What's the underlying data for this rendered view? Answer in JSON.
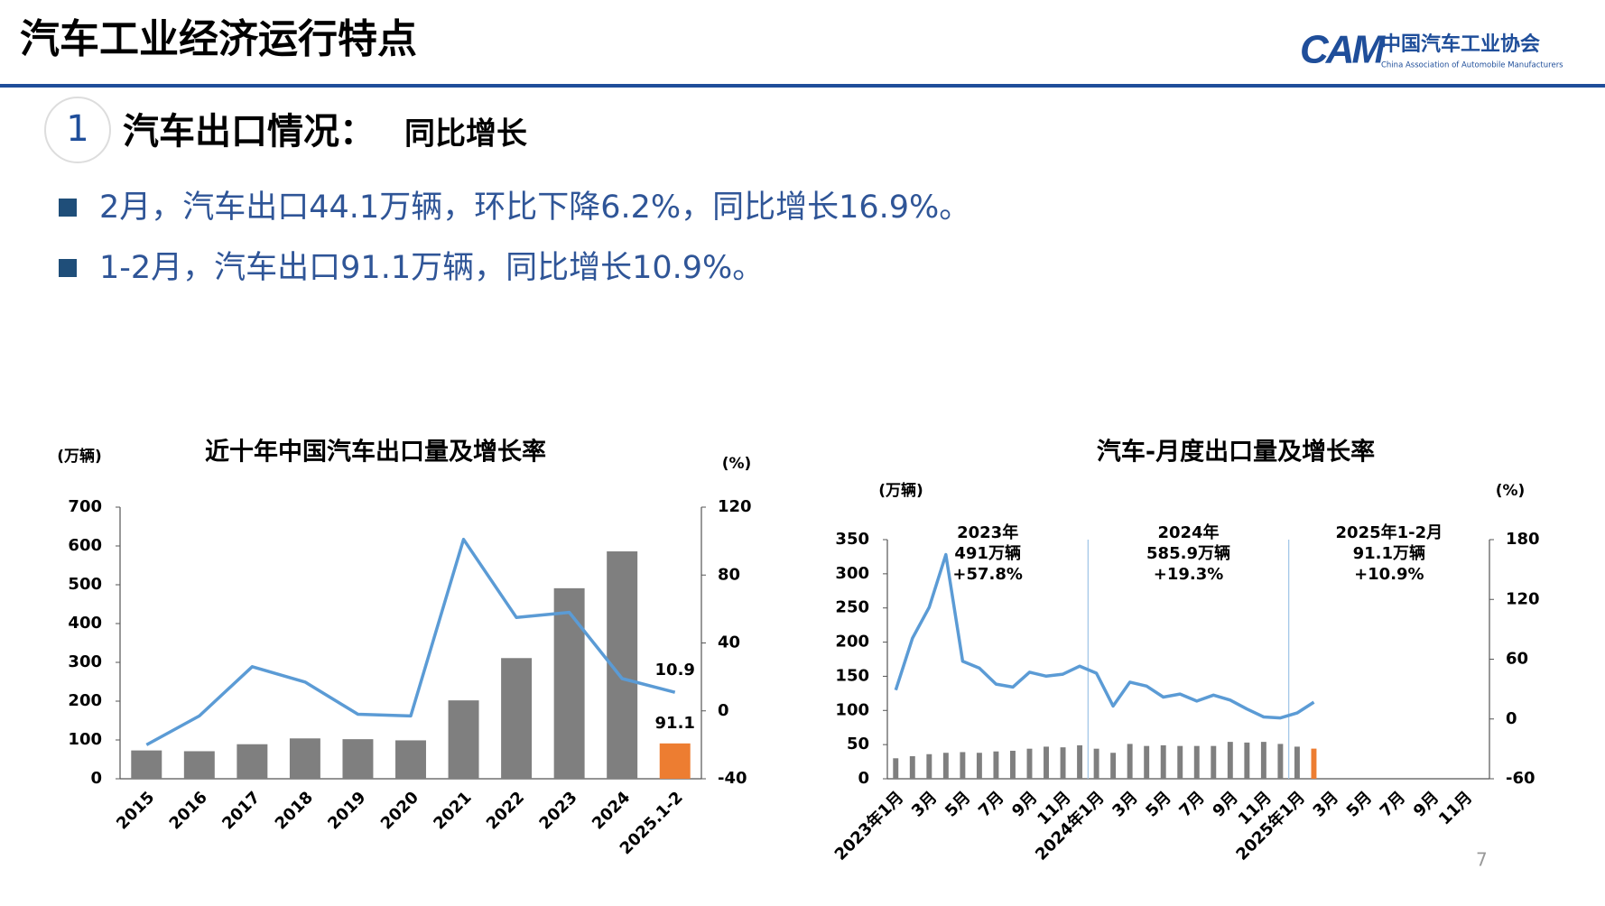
{
  "header": {
    "title": "汽车工业经济运行特点",
    "org_name": "中国汽车工业协会",
    "org_name_en": "China Association of Automobile Manufacturers",
    "logo_text": "CAM"
  },
  "section": {
    "number": "1",
    "heading": "汽车出口情况：",
    "subheading": "同比增长",
    "bullets": [
      "2月，汽车出口44.1万辆，环比下降6.2%，同比增长16.9%。",
      "1-2月，汽车出口91.1万辆，同比增长10.9%。"
    ]
  },
  "page_number": "7",
  "chart_data": [
    {
      "type": "combo",
      "title": "近十年中国汽车出口量及增长率",
      "y_label": "(万辆)",
      "y2_label": "(%)",
      "categories": [
        "2015",
        "2016",
        "2017",
        "2018",
        "2019",
        "2020",
        "2021",
        "2022",
        "2023",
        "2024",
        "2025.1-2"
      ],
      "series": [
        {
          "type": "bar",
          "axis": "y",
          "color": "#7f7f7f",
          "last_color": "#ed7d31",
          "values": [
            73,
            71,
            89,
            104,
            102,
            99,
            202,
            311,
            491,
            586,
            91.1
          ]
        },
        {
          "type": "line",
          "axis": "y2",
          "color": "#5b9bd5",
          "values": [
            -20,
            -3,
            26,
            17,
            -2,
            -3,
            101,
            55,
            58,
            19,
            10.9
          ]
        }
      ],
      "label_last": true,
      "ylim": [
        0,
        700
      ],
      "yticks": [
        0,
        100,
        200,
        300,
        400,
        500,
        600,
        700
      ],
      "y2lim": [
        -40,
        120
      ],
      "y2ticks": [
        -40,
        0,
        40,
        80,
        120
      ],
      "bar_width": 0.58
    },
    {
      "type": "combo",
      "title": "汽车-月度出口量及增长率",
      "y_label": "(万辆)",
      "y2_label": "(%)",
      "categories": [
        "2023年1月",
        null,
        "3月",
        null,
        "5月",
        null,
        "7月",
        null,
        "9月",
        null,
        "11月",
        null,
        "2024年1月",
        null,
        "3月",
        null,
        "5月",
        null,
        "7月",
        null,
        "9月",
        null,
        "11月",
        null,
        "2025年1月",
        null,
        "3月",
        null,
        "5月",
        null,
        "7月",
        null,
        "9月",
        null,
        "11月",
        null
      ],
      "series": [
        {
          "type": "bar",
          "axis": "y",
          "color": "#7f7f7f",
          "last_color": "#ed7d31",
          "values": [
            30,
            33,
            36,
            38,
            39,
            38,
            40,
            41,
            44,
            47,
            46,
            49,
            44,
            38,
            51,
            48,
            49,
            48,
            48,
            48,
            54,
            53,
            54,
            51,
            47,
            44.1,
            null,
            null,
            null,
            null,
            null,
            null,
            null,
            null,
            null,
            null
          ]
        },
        {
          "type": "line",
          "axis": "y2",
          "color": "#5b9bd5",
          "values": [
            29,
            81,
            112,
            165,
            58,
            51,
            35,
            32,
            47,
            43,
            45,
            53,
            46,
            13,
            37,
            33,
            22,
            25,
            18,
            24,
            19,
            10,
            2,
            1,
            6,
            16.9,
            null,
            null,
            null,
            null,
            null,
            null,
            null,
            null,
            null,
            null
          ]
        }
      ],
      "annotations": [
        [
          "2023年",
          "491万辆",
          "+57.8%"
        ],
        [
          "2024年",
          "585.9万辆",
          "+19.3%"
        ],
        [
          "2025年1-2月",
          "91.1万辆",
          "+10.9%"
        ]
      ],
      "ylim": [
        0,
        350
      ],
      "yticks": [
        0,
        50,
        100,
        150,
        200,
        250,
        300,
        350
      ],
      "y2lim": [
        -60,
        180
      ],
      "y2ticks": [
        -60,
        0,
        60,
        120,
        180
      ],
      "bar_width": 0.32
    }
  ]
}
